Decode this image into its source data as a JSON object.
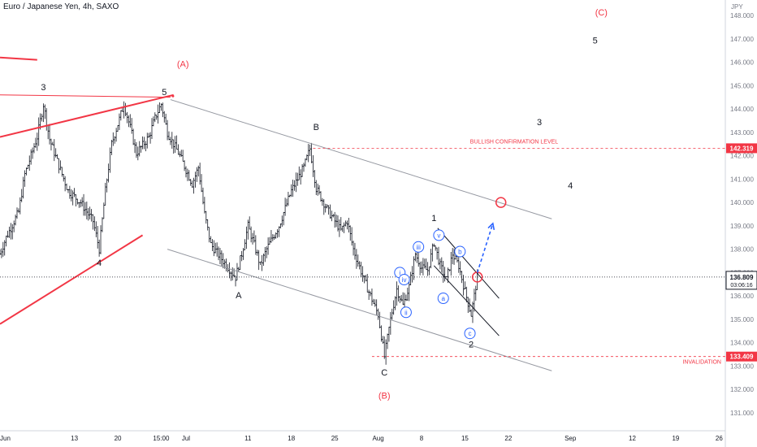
{
  "header": {
    "title": "Euro / Japanese Yen, 4h, SAXO"
  },
  "chart_data": {
    "type": "candlestick",
    "currency_label": "JPY",
    "y_ticks": [
      131,
      132,
      133,
      134,
      135,
      136,
      137,
      138,
      139,
      140,
      141,
      142,
      143,
      144,
      145,
      146,
      147,
      148
    ],
    "y_tick_labels": [
      "131.000",
      "132.000",
      "133.000",
      "134.000",
      "135.000",
      "136.000",
      "137.000",
      "138.000",
      "139.000",
      "140.000",
      "141.000",
      "142.000",
      "143.000",
      "144.000",
      "145.000",
      "146.000",
      "147.000",
      "148.000"
    ],
    "ylim": [
      130.3,
      148.5
    ],
    "x_ticks": [
      {
        "label": "Jun",
        "day": 1
      },
      {
        "label": "13",
        "day": 13
      },
      {
        "label": "20",
        "day": 20
      },
      {
        "label": "15:00",
        "day": 27
      },
      {
        "label": "Jul",
        "day": 31
      },
      {
        "label": "11",
        "day": 41
      },
      {
        "label": "18",
        "day": 48
      },
      {
        "label": "25",
        "day": 55
      },
      {
        "label": "Aug",
        "day": 62
      },
      {
        "label": "8",
        "day": 69
      },
      {
        "label": "15",
        "day": 76
      },
      {
        "label": "22",
        "day": 83
      },
      {
        "label": "Sep",
        "day": 93
      },
      {
        "label": "12",
        "day": 103
      },
      {
        "label": "19",
        "day": 110
      },
      {
        "label": "26",
        "day": 117
      }
    ],
    "xlim_days": [
      1,
      118
    ],
    "price_path": [
      [
        1,
        137.8
      ],
      [
        2,
        138.5
      ],
      [
        4,
        139.6
      ],
      [
        5,
        141.2
      ],
      [
        7,
        142.8
      ],
      [
        8,
        144.2
      ],
      [
        9,
        142.7
      ],
      [
        11,
        141.2
      ],
      [
        12,
        140.5
      ],
      [
        14,
        140.0
      ],
      [
        16,
        139.2
      ],
      [
        17,
        138.0
      ],
      [
        18,
        140.5
      ],
      [
        19,
        142.5
      ],
      [
        21,
        144.2
      ],
      [
        22,
        143.2
      ],
      [
        23,
        142.1
      ],
      [
        25,
        142.8
      ],
      [
        26,
        143.6
      ],
      [
        27,
        144.2
      ],
      [
        28,
        143.0
      ],
      [
        30,
        142.0
      ],
      [
        32,
        140.8
      ],
      [
        33,
        141.5
      ],
      [
        34,
        139.5
      ],
      [
        35,
        138.2
      ],
      [
        37,
        137.5
      ],
      [
        39,
        136.8
      ],
      [
        40,
        137.8
      ],
      [
        41,
        139.0
      ],
      [
        42,
        138.2
      ],
      [
        43,
        137.3
      ],
      [
        44,
        138.0
      ],
      [
        46,
        139.0
      ],
      [
        48,
        140.5
      ],
      [
        50,
        141.5
      ],
      [
        51,
        142.3
      ],
      [
        52,
        140.6
      ],
      [
        54,
        139.6
      ],
      [
        56,
        138.8
      ],
      [
        57,
        139.2
      ],
      [
        58,
        138.0
      ],
      [
        60,
        136.5
      ],
      [
        62,
        135.2
      ],
      [
        63,
        133.41
      ],
      [
        64,
        135.0
      ],
      [
        65,
        136.3
      ],
      [
        66,
        135.6
      ],
      [
        67,
        136.4
      ],
      [
        68,
        137.8
      ],
      [
        69,
        137.2
      ],
      [
        70,
        137.1
      ],
      [
        71,
        138.3
      ],
      [
        72,
        137.3
      ],
      [
        73,
        136.7
      ],
      [
        74,
        137.8
      ],
      [
        75,
        137.3
      ],
      [
        76,
        136.2
      ],
      [
        77,
        135.2
      ],
      [
        78,
        136.809
      ]
    ],
    "current_price": 136.809,
    "current_price_label": "136.809",
    "countdown": "03:06:16",
    "levels": [
      {
        "name": "BULLISH CONFIRMATION LEVEL",
        "value": 142.319,
        "label": "142.319",
        "color": "#f23645"
      },
      {
        "name": "INVALIDATION",
        "value": 133.409,
        "label": "133.409",
        "color": "#f23645"
      }
    ],
    "wave_labels": {
      "black": [
        {
          "text": "3",
          "day": 8,
          "price": 144.8
        },
        {
          "text": "4",
          "day": 17,
          "price": 137.3
        },
        {
          "text": "5",
          "day": 27.5,
          "price": 144.6
        },
        {
          "text": "A",
          "day": 39.5,
          "price": 135.9
        },
        {
          "text": "B",
          "day": 52,
          "price": 143.1
        },
        {
          "text": "C",
          "day": 63,
          "price": 132.6
        },
        {
          "text": "1",
          "day": 71,
          "price": 139.2
        },
        {
          "text": "2",
          "day": 77,
          "price": 133.8
        },
        {
          "text": "3",
          "day": 88,
          "price": 143.3
        },
        {
          "text": "4",
          "day": 93,
          "price": 140.6
        },
        {
          "text": "5",
          "day": 97,
          "price": 146.8
        }
      ],
      "red": [
        {
          "text": "(A)",
          "day": 30.5,
          "price": 145.8
        },
        {
          "text": "(B)",
          "day": 63,
          "price": 131.6
        },
        {
          "text": "(C)",
          "day": 98,
          "price": 148.0
        }
      ],
      "blue_circled": [
        {
          "text": "i",
          "day": 65.5,
          "price": 137.0
        },
        {
          "text": "ii",
          "day": 66.5,
          "price": 135.3
        },
        {
          "text": "iii",
          "day": 68.5,
          "price": 138.1
        },
        {
          "text": "iv",
          "day": 66.2,
          "price": 136.7
        },
        {
          "text": "v",
          "day": 71.8,
          "price": 138.6
        },
        {
          "text": "a",
          "day": 72.5,
          "price": 135.9
        },
        {
          "text": "b",
          "day": 75.2,
          "price": 137.9
        },
        {
          "text": "c",
          "day": 76.8,
          "price": 134.4
        }
      ]
    },
    "lines": {
      "red_wedge_upper": [
        [
          1,
          142.8
        ],
        [
          29,
          144.6
        ]
      ],
      "red_wedge_lower": [
        [
          1,
          134.8
        ],
        [
          24,
          138.6
        ]
      ],
      "red_short_line": [
        [
          1,
          146.2
        ],
        [
          7,
          146.1
        ]
      ],
      "red_horizontal": [
        [
          1,
          144.6
        ],
        [
          28.5,
          144.5
        ]
      ],
      "gray_channel_upper": [
        [
          28.5,
          144.4
        ],
        [
          90,
          139.3
        ]
      ],
      "gray_channel_lower": [
        [
          28,
          138.0
        ],
        [
          90,
          132.8
        ]
      ],
      "black_channel_upper": [
        [
          71.6,
          138.9
        ],
        [
          81.5,
          135.9
        ]
      ],
      "black_channel_lower": [
        [
          71,
          137.3
        ],
        [
          81.5,
          134.3
        ]
      ],
      "dotted_price_line": [
        [
          1,
          136.809
        ],
        [
          118,
          136.809
        ]
      ]
    },
    "projection_arrow": [
      [
        78,
        137.0
      ],
      [
        80.5,
        139.1
      ]
    ],
    "circle_markers": [
      {
        "day": 78,
        "price": 136.809
      },
      {
        "day": 81.8,
        "price": 140.0
      }
    ]
  }
}
